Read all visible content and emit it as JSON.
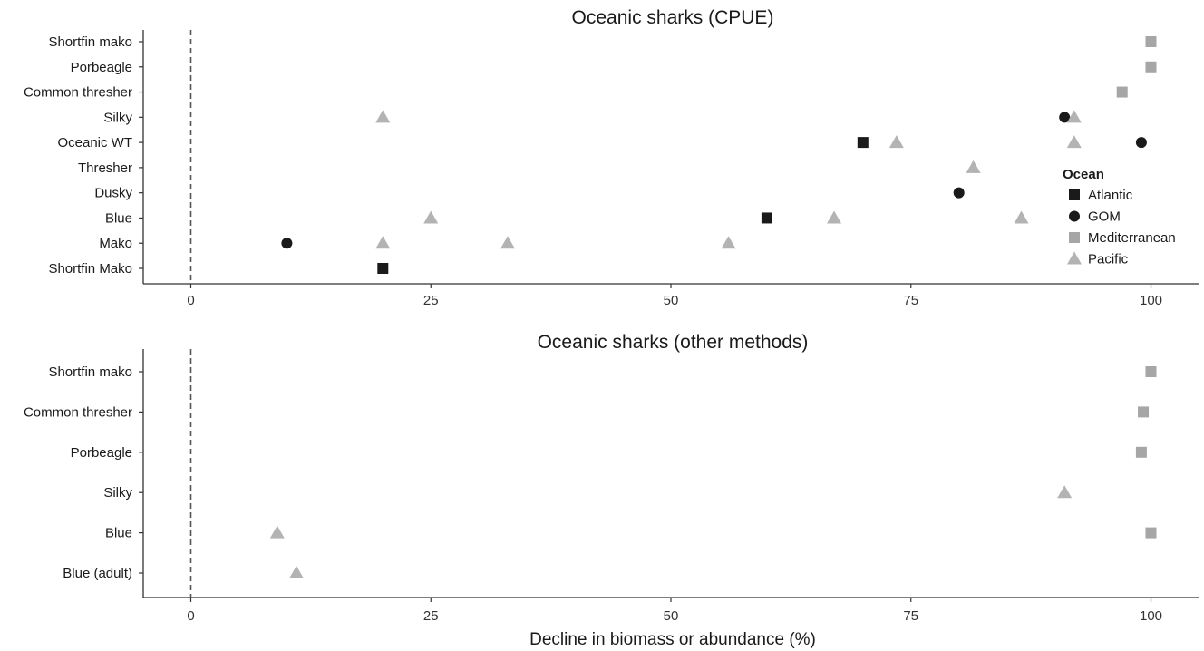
{
  "chart_data": [
    {
      "type": "scatter",
      "title": "Oceanic sharks (CPUE)",
      "xlabel": "",
      "ylabel": "",
      "xlim": [
        -5,
        105
      ],
      "xticks": [
        0,
        25,
        50,
        75,
        100
      ],
      "reference_line": 0,
      "categories": [
        "Shortfin mako",
        "Porbeagle",
        "Common thresher",
        "Silky",
        "Oceanic WT",
        "Thresher",
        "Dusky",
        "Blue",
        "Mako",
        "Shortfin Mako"
      ],
      "series": [
        {
          "name": "Atlantic",
          "shape": "square",
          "color": "#1a1a1a",
          "points": [
            {
              "cat": "Oceanic WT",
              "x": 70
            },
            {
              "cat": "Blue",
              "x": 60
            },
            {
              "cat": "Shortfin Mako",
              "x": 20
            }
          ]
        },
        {
          "name": "GOM",
          "shape": "circle",
          "color": "#1a1a1a",
          "points": [
            {
              "cat": "Silky",
              "x": 91
            },
            {
              "cat": "Oceanic WT",
              "x": 99
            },
            {
              "cat": "Dusky",
              "x": 80
            },
            {
              "cat": "Mako",
              "x": 10
            }
          ]
        },
        {
          "name": "Mediterranean",
          "shape": "square",
          "color": "#a6a6a6",
          "points": [
            {
              "cat": "Shortfin mako",
              "x": 100
            },
            {
              "cat": "Porbeagle",
              "x": 100
            },
            {
              "cat": "Common thresher",
              "x": 97
            }
          ]
        },
        {
          "name": "Pacific",
          "shape": "triangle",
          "color": "#b3b3b3",
          "points": [
            {
              "cat": "Silky",
              "x": 20
            },
            {
              "cat": "Silky",
              "x": 92
            },
            {
              "cat": "Oceanic WT",
              "x": 73.5
            },
            {
              "cat": "Oceanic WT",
              "x": 92
            },
            {
              "cat": "Thresher",
              "x": 81.5
            },
            {
              "cat": "Blue",
              "x": 25
            },
            {
              "cat": "Blue",
              "x": 67
            },
            {
              "cat": "Blue",
              "x": 86.5
            },
            {
              "cat": "Mako",
              "x": 20
            },
            {
              "cat": "Mako",
              "x": 33
            },
            {
              "cat": "Mako",
              "x": 56
            }
          ]
        }
      ],
      "legend": {
        "title": "Ocean",
        "position": "right",
        "entries": [
          "Atlantic",
          "GOM",
          "Mediterranean",
          "Pacific"
        ]
      }
    },
    {
      "type": "scatter",
      "title": "Oceanic sharks (other methods)",
      "xlabel": "Decline in biomass or abundance (%)",
      "ylabel": "",
      "xlim": [
        -5,
        105
      ],
      "xticks": [
        0,
        25,
        50,
        75,
        100
      ],
      "reference_line": 0,
      "categories": [
        "Shortfin mako",
        "Common thresher",
        "Porbeagle",
        "Silky",
        "Blue",
        "Blue (adult)"
      ],
      "series": [
        {
          "name": "Mediterranean",
          "shape": "square",
          "color": "#a6a6a6",
          "points": [
            {
              "cat": "Shortfin mako",
              "x": 100
            },
            {
              "cat": "Common thresher",
              "x": 99.2
            },
            {
              "cat": "Porbeagle",
              "x": 99
            },
            {
              "cat": "Blue",
              "x": 100
            }
          ]
        },
        {
          "name": "Pacific",
          "shape": "triangle",
          "color": "#b3b3b3",
          "points": [
            {
              "cat": "Silky",
              "x": 91
            },
            {
              "cat": "Blue",
              "x": 9
            },
            {
              "cat": "Blue (adult)",
              "x": 11
            }
          ]
        }
      ]
    }
  ]
}
